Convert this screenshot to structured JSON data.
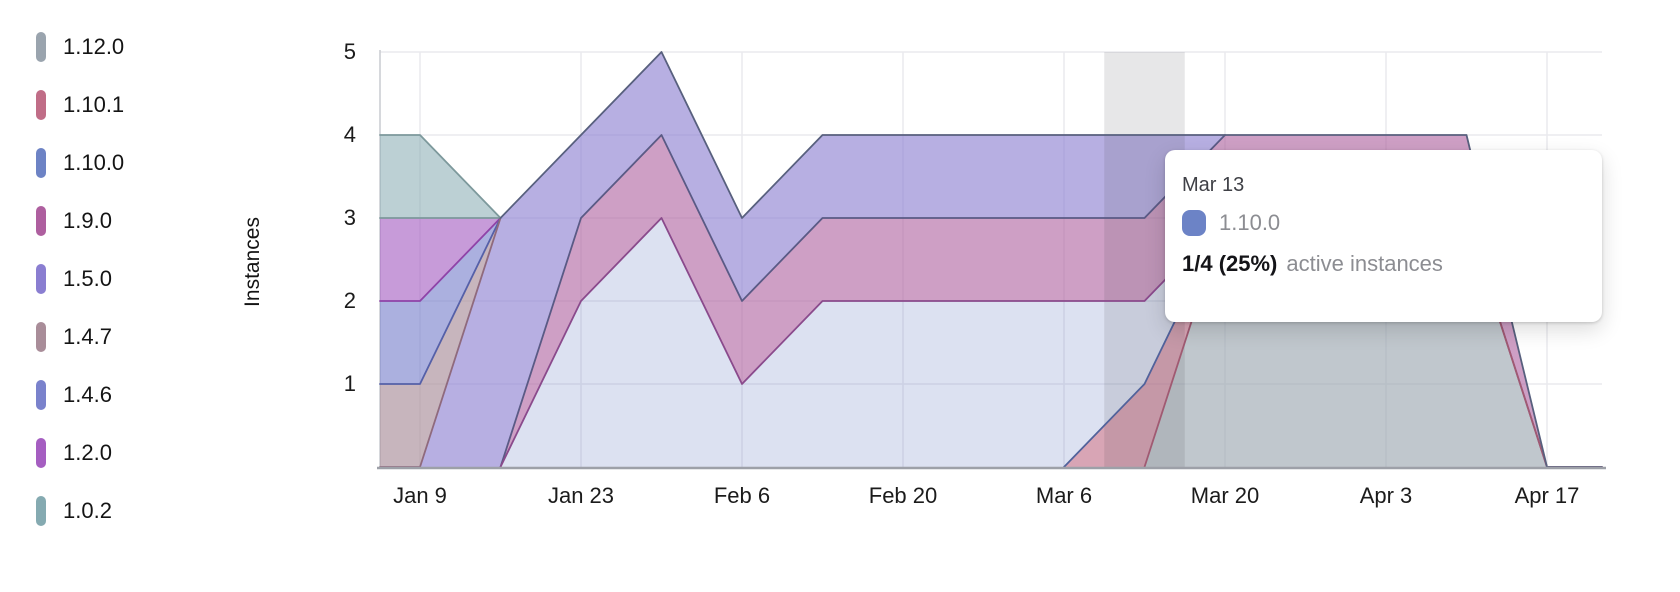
{
  "legend": {
    "items": [
      {
        "label": "1.12.0",
        "color": "#9aa4ae"
      },
      {
        "label": "1.10.1",
        "color": "#c06d87"
      },
      {
        "label": "1.10.0",
        "color": "#6d83c5"
      },
      {
        "label": "1.9.0",
        "color": "#ae5f9f"
      },
      {
        "label": "1.5.0",
        "color": "#8a7ed1"
      },
      {
        "label": "1.4.7",
        "color": "#a98d99"
      },
      {
        "label": "1.4.6",
        "color": "#7a82cc"
      },
      {
        "label": "1.2.0",
        "color": "#a55ec1"
      },
      {
        "label": "1.0.2",
        "color": "#85aab1"
      }
    ]
  },
  "axes": {
    "y_label": "Instances",
    "y_ticks": [
      "5",
      "4",
      "3",
      "2",
      "1"
    ],
    "x_ticks": [
      "Jan 9",
      "Jan 23",
      "Feb 6",
      "Feb 20",
      "Mar 6",
      "Mar 20",
      "Apr 3",
      "Apr 17"
    ]
  },
  "tooltip": {
    "date": "Mar 13",
    "series": "1.10.0",
    "swatch_color": "#6c83c6",
    "value": "1/4 (25%)",
    "suffix": "active instances"
  },
  "chart_data": {
    "type": "area",
    "stacked": true,
    "title": "",
    "xlabel": "",
    "ylabel": "Instances",
    "ylim": [
      0,
      5
    ],
    "grid": true,
    "legend_position": "left",
    "x": [
      "Jan 2",
      "Jan 9",
      "Jan 16",
      "Jan 23",
      "Jan 30",
      "Feb 6",
      "Feb 13",
      "Feb 20",
      "Feb 27",
      "Mar 6",
      "Mar 13",
      "Mar 20",
      "Mar 27",
      "Apr 3",
      "Apr 10",
      "Apr 17"
    ],
    "x_tick_labels": [
      "Jan 9",
      "Jan 23",
      "Feb 6",
      "Feb 20",
      "Mar 6",
      "Mar 20",
      "Apr 3",
      "Apr 17"
    ],
    "hover": {
      "index": 10,
      "label": "Mar 13",
      "highlighted_series": "1.10.0",
      "value_text": "1/4 (25%)"
    },
    "total_line_colors": {
      "left": "#7d999c",
      "main": "#58607e"
    },
    "series": [
      {
        "name": "1.12.0",
        "marker": "#9aa4ae",
        "fill": "rgba(154,164,174,0.62)",
        "line": "#8f99a4",
        "values": [
          0,
          0,
          0,
          0,
          0,
          0,
          0,
          0,
          0,
          0,
          0,
          3,
          3,
          3,
          3,
          0
        ]
      },
      {
        "name": "1.10.1",
        "marker": "#c06d87",
        "fill": "rgba(192,109,135,0.62)",
        "line": "#a05a72",
        "values": [
          0,
          0,
          0,
          0,
          0,
          0,
          0,
          0,
          0,
          0,
          1,
          0,
          0,
          0,
          0,
          0
        ]
      },
      {
        "name": "1.10.0",
        "marker": "#6d83c5",
        "fill": "rgba(109,131,197,0.24)",
        "line": "#51629b",
        "values": [
          0,
          0,
          0,
          2,
          3,
          1,
          2,
          2,
          2,
          2,
          1,
          0,
          0,
          0,
          0,
          0
        ]
      },
      {
        "name": "1.9.0",
        "marker": "#ae5f9f",
        "fill": "rgba(174,95,159,0.6)",
        "line": "#8a4a8c",
        "values": [
          0,
          0,
          0,
          1,
          1,
          1,
          1,
          1,
          1,
          1,
          1,
          1,
          1,
          1,
          1,
          0
        ]
      },
      {
        "name": "1.5.0",
        "marker": "#8a7ed1",
        "fill": "rgba(138,126,209,0.62)",
        "line": "#5a5a85",
        "values": [
          0,
          0,
          3,
          1,
          1,
          1,
          1,
          1,
          1,
          1,
          1,
          0,
          0,
          0,
          0,
          0
        ]
      },
      {
        "name": "1.4.7",
        "marker": "#a98d99",
        "fill": "rgba(169,141,153,0.65)",
        "line": "#8f6a7d",
        "values": [
          1,
          1,
          0,
          0,
          0,
          0,
          0,
          0,
          0,
          0,
          0,
          0,
          0,
          0,
          0,
          0
        ]
      },
      {
        "name": "1.4.6",
        "marker": "#7a82cc",
        "fill": "rgba(122,130,204,0.63)",
        "line": "#5560a8",
        "values": [
          1,
          1,
          0,
          0,
          0,
          0,
          0,
          0,
          0,
          0,
          0,
          0,
          0,
          0,
          0,
          0
        ]
      },
      {
        "name": "1.2.0",
        "marker": "#a55ec1",
        "fill": "rgba(165,94,193,0.62)",
        "line": "#8f43a8",
        "values": [
          1,
          1,
          0,
          0,
          0,
          0,
          0,
          0,
          0,
          0,
          0,
          0,
          0,
          0,
          0,
          0
        ]
      },
      {
        "name": "1.0.2",
        "marker": "#85aab1",
        "fill": "rgba(133,170,177,0.55)",
        "line": "#7d999c",
        "values": [
          1,
          1,
          0,
          0,
          0,
          0,
          0,
          0,
          0,
          0,
          0,
          0,
          0,
          0,
          0,
          0
        ]
      }
    ]
  }
}
